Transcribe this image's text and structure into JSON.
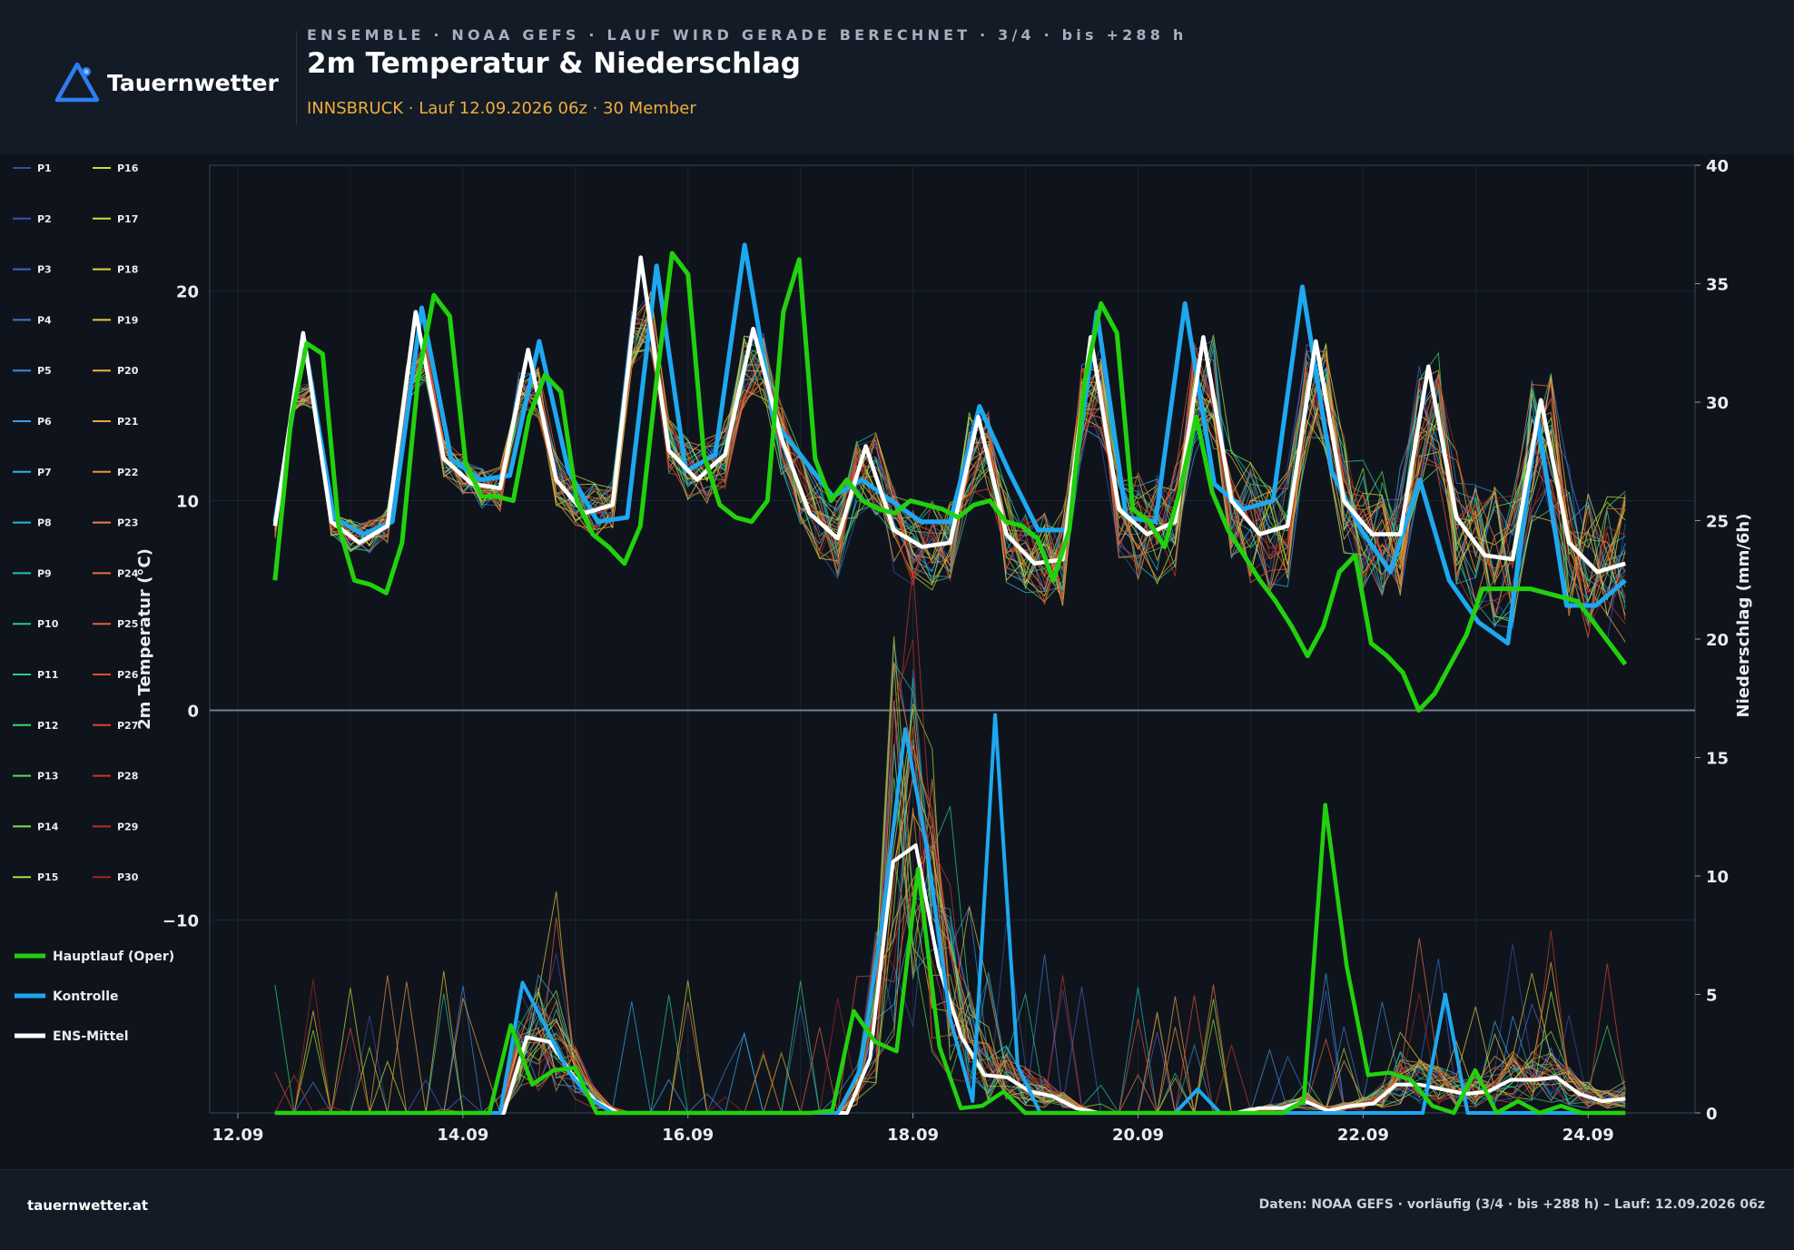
{
  "brand": {
    "name": "Tauernwetter"
  },
  "header": {
    "kicker": "ENSEMBLE · NOAA GEFS · LAUF WIRD GERADE BERECHNET · 3/4 · bis +288 h",
    "title": "2m Temperatur & Niederschlag",
    "subtitle": "INNSBRUCK · Lauf 12.09.2026 06z · 30 Member"
  },
  "footer": {
    "site": "tauernwetter.at",
    "source": "Daten: NOAA GEFS · vorläufig (3/4 · bis +288 h) – Lauf: 12.09.2026 06z"
  },
  "colors": {
    "oper": "#22d10e",
    "control": "#1ea8f0",
    "mean": "#ffffff",
    "background": "#0f141c",
    "header": "#131b27",
    "accent": "#f0ad3c"
  },
  "chart_data": {
    "type": "line",
    "x_ticks": [
      "12.09",
      "14.09",
      "16.09",
      "18.09",
      "20.09",
      "22.09",
      "24.09"
    ],
    "x_tick_days": [
      12,
      14,
      16,
      18,
      20,
      22,
      24
    ],
    "xlim_days": [
      11.75,
      24.95
    ],
    "x_unit_note": "x values in day-of-month (September 2026), 6-hourly steps from 12.09 06z",
    "left_axis": {
      "label": "2m Temperatur (°C)",
      "ylim": [
        -19.2,
        26
      ],
      "ticks": [
        "20",
        "10",
        "0",
        "−10"
      ],
      "tick_values": [
        20,
        10,
        0,
        -10
      ]
    },
    "right_axis": {
      "label": "Niederschlag (mm/6h)",
      "ylim": [
        0,
        40
      ],
      "ticks": [
        "40",
        "35",
        "30",
        "25",
        "20",
        "15",
        "10",
        "5",
        "0"
      ],
      "tick_values": [
        40,
        35,
        30,
        25,
        20,
        15,
        10,
        5,
        0
      ]
    },
    "grid": true,
    "legend_placement": "left",
    "members": [
      "P1",
      "P2",
      "P3",
      "P4",
      "P5",
      "P6",
      "P7",
      "P8",
      "P9",
      "P10",
      "P11",
      "P12",
      "P13",
      "P14",
      "P15",
      "P16",
      "P17",
      "P18",
      "P19",
      "P20",
      "P21",
      "P22",
      "P23",
      "P24",
      "P25",
      "P26",
      "P27",
      "P28",
      "P29",
      "P30"
    ],
    "series_legend": [
      "Hauptlauf (Oper)",
      "Kontrolle",
      "ENS-Mittel"
    ],
    "x_days": [
      12.33,
      12.5,
      12.67,
      12.83,
      13.0,
      13.17,
      13.33,
      13.5,
      13.67,
      13.83,
      14.0,
      14.17,
      14.33,
      14.5,
      14.67,
      14.83,
      15.0,
      15.17,
      15.33,
      15.5,
      15.67,
      15.83,
      16.0,
      16.17,
      16.33,
      16.5,
      16.67,
      16.83,
      17.0,
      17.17,
      17.33,
      17.5,
      17.67,
      17.83,
      18.0,
      18.17,
      18.33,
      18.5,
      18.67,
      18.83,
      19.0,
      19.17,
      19.33,
      19.5,
      19.67,
      19.83,
      20.0,
      20.17,
      20.33,
      20.5,
      20.67,
      20.83,
      21.0,
      21.17,
      21.33,
      21.5,
      21.67,
      21.83,
      22.0,
      22.17,
      22.33,
      22.5,
      22.67,
      22.83,
      23.0,
      23.17,
      23.33,
      23.5,
      23.67,
      23.83,
      24.0,
      24.17,
      24.33
    ],
    "temperature": {
      "oper": [
        6.2,
        13.8,
        17.5,
        17.0,
        8.8,
        6.2,
        6.0,
        5.6,
        8.0,
        15.8,
        19.8,
        18.8,
        11.8,
        10.2,
        10.2,
        10.0,
        14.0,
        16.0,
        15.2,
        10.0,
        8.4,
        7.8,
        7.0,
        8.8,
        15.6,
        21.8,
        20.8,
        12.2,
        9.8,
        9.2,
        9.0,
        10.0,
        19.0,
        21.5,
        12.0,
        10.0,
        11.0,
        10.0,
        9.6,
        9.4,
        10.0,
        9.8,
        9.6,
        9.2,
        9.8,
        10.0,
        9.0,
        8.8,
        8.2,
        6.2,
        8.6,
        15.8,
        19.4,
        18.0,
        9.6,
        9.0,
        7.8,
        10.6,
        14.0,
        10.4,
        8.6,
        7.4,
        6.2,
        5.2,
        4.0,
        2.6,
        4.0,
        6.6,
        7.4,
        3.2,
        2.6,
        1.8,
        0.0,
        0.8,
        2.2,
        3.6,
        5.8,
        5.8,
        5.8,
        5.8,
        5.6,
        5.4,
        5.2,
        4.2,
        3.2,
        2.2
      ],
      "control": [
        9.0,
        17.6,
        9.2,
        8.4,
        9.0,
        19.2,
        12.0,
        11.0,
        11.2,
        17.6,
        11.4,
        9.0,
        9.2,
        21.2,
        11.4,
        12.2,
        22.2,
        13.8,
        12.0,
        10.2,
        11.0,
        10.0,
        9.0,
        9.0,
        14.5,
        11.4,
        8.6,
        8.6,
        19.0,
        9.2,
        9.0,
        19.4,
        10.8,
        9.6,
        10.0,
        20.2,
        11.4,
        8.6,
        6.6,
        11.0,
        6.2,
        4.2,
        3.2,
        14.0,
        5.0,
        5.0,
        6.2
      ],
      "mean": [
        8.8,
        18.0,
        9.0,
        8.0,
        8.8,
        19.0,
        12.0,
        10.8,
        10.6,
        17.2,
        11.0,
        9.4,
        9.8,
        21.6,
        12.4,
        11.0,
        12.2,
        18.2,
        13.0,
        9.4,
        8.2,
        12.6,
        8.6,
        7.8,
        8.0,
        14.0,
        8.4,
        7.0,
        7.2,
        17.8,
        9.6,
        8.4,
        9.0,
        17.8,
        10.0,
        8.4,
        8.8,
        17.6,
        10.0,
        8.4,
        8.4,
        16.4,
        9.2,
        7.4,
        7.2,
        14.8,
        8.0,
        6.6,
        7.0
      ]
    },
    "precipitation": {
      "oper": [
        0,
        0,
        0,
        0,
        0,
        0,
        0,
        0,
        0,
        0,
        0,
        3.7,
        1.2,
        1.8,
        1.9,
        0,
        0,
        0,
        0,
        0,
        0,
        0,
        0,
        0,
        0,
        0,
        0.1,
        4.3,
        3.0,
        2.6,
        10.3,
        2.8,
        0.2,
        0.3,
        0.9,
        0,
        0,
        0,
        0,
        0,
        0,
        0,
        0,
        0,
        0,
        0,
        0,
        0,
        0.5,
        13.0,
        6.2,
        1.6,
        1.7,
        1.4,
        0.3,
        0,
        1.8,
        0,
        0.5,
        0,
        0.3,
        0,
        0,
        0
      ],
      "control": [
        0,
        0,
        0,
        0,
        0,
        0,
        0,
        0,
        0,
        0,
        0,
        5.5,
        3.7,
        1.8,
        0.6,
        0,
        0,
        0,
        0,
        0,
        0,
        0,
        0,
        0,
        0,
        0,
        1.8,
        8.2,
        16.2,
        11.0,
        4.0,
        0.5,
        16.8,
        2.0,
        0,
        0,
        0,
        0,
        0,
        0,
        0,
        1.0,
        0,
        0,
        0,
        0,
        0,
        0,
        0,
        0,
        0,
        0,
        5.0,
        0,
        0,
        0,
        0,
        0,
        0,
        0,
        0
      ],
      "mean": [
        0,
        0,
        0,
        0,
        0,
        0,
        0,
        0,
        0,
        0,
        0,
        3.2,
        3.0,
        1.6,
        0.5,
        0,
        0,
        0,
        0,
        0,
        0,
        0,
        0,
        0,
        0,
        0,
        2.3,
        10.6,
        11.3,
        6.2,
        3.2,
        1.6,
        1.5,
        0.9,
        0.7,
        0.2,
        0,
        0,
        0,
        0,
        0,
        0,
        0,
        0.2,
        0.2,
        0.5,
        0.1,
        0.3,
        0.4,
        1.2,
        1.2,
        1.0,
        0.8,
        0.9,
        1.4,
        1.4,
        1.5,
        0.8,
        0.5,
        0.6
      ]
    }
  }
}
